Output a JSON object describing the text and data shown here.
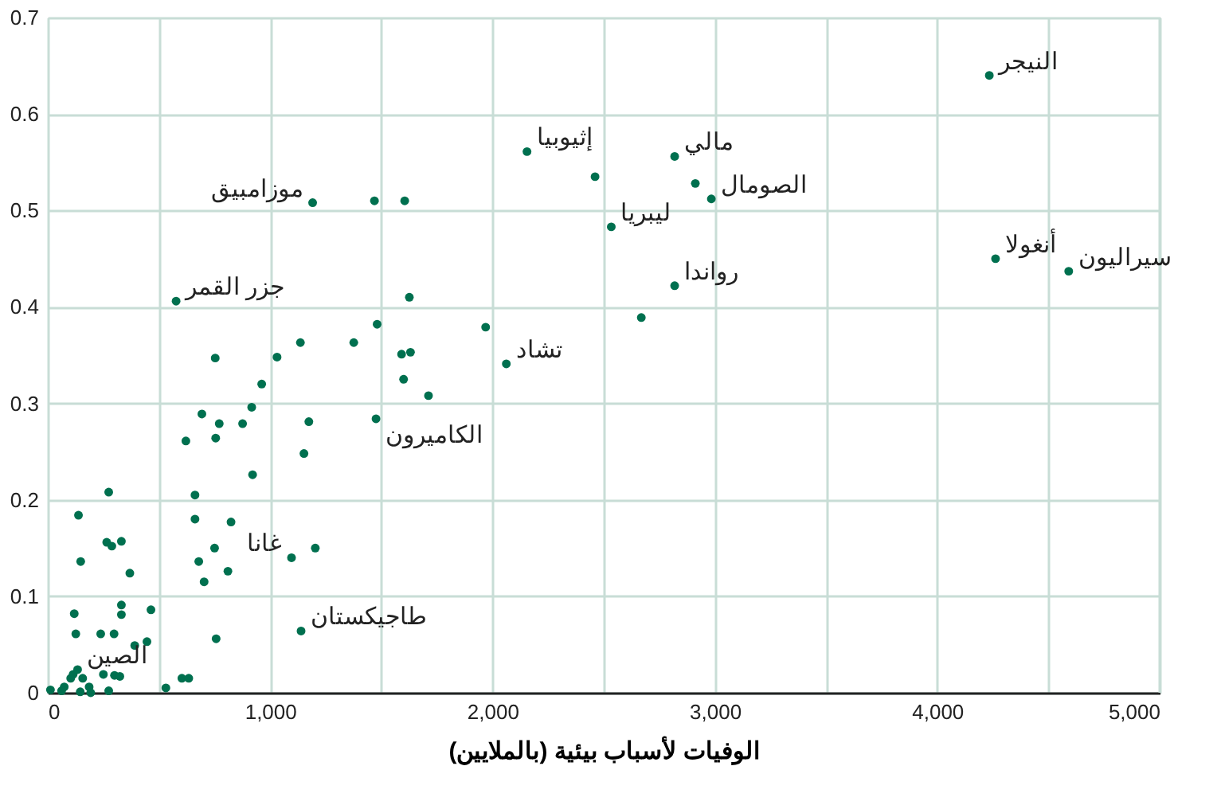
{
  "chart_data": {
    "type": "scatter",
    "xlabel": "الوفيات لأسباب بيئية (بالملايين)",
    "xlim": [
      0,
      5000
    ],
    "ylim": [
      0,
      0.7
    ],
    "xticks": [
      0,
      {
        "value": 500,
        "label": null
      },
      {
        "value": 1000,
        "label": "1,000"
      },
      {
        "value": 1500,
        "label": null
      },
      {
        "value": 2000,
        "label": "2,000"
      },
      {
        "value": 2500,
        "label": null
      },
      {
        "value": 3000,
        "label": "3,000"
      },
      {
        "value": 3500,
        "label": null
      },
      {
        "value": 4000,
        "label": "4,000"
      },
      {
        "value": 4500,
        "label": null
      },
      {
        "value": 5000,
        "label": "5,000"
      }
    ],
    "yticks": [
      0,
      0.1,
      0.2,
      0.3,
      0.4,
      0.5,
      0.6,
      0.7
    ],
    "grid": true,
    "marker": "circle",
    "series": [
      {
        "color": "#00704f",
        "x": [
          4234,
          4262,
          4591,
          2819,
          2912,
          2984,
          2461,
          2155,
          2534,
          2819,
          2669,
          2062,
          1969,
          1191,
          1469,
          1605,
          577,
          1626,
          1481,
          1376,
          1136,
          1031,
          753,
          1591,
          1631,
          1600,
          1712,
          962,
          917,
          693,
          771,
          876,
          1174,
          1476,
          621,
          755,
          1152,
          921,
          274,
          662,
          662,
          824,
          138,
          265,
          288,
          331,
          750,
          148,
          369,
          679,
          810,
          703,
          1096,
          1203,
          331,
          331,
          464,
          119,
          126,
          238,
          298,
          391,
          446,
          757,
          1139,
          114,
          134,
          103,
          157,
          186,
          74,
          12,
          62,
          146,
          193,
          250,
          300,
          324,
          274,
          531,
          603,
          634
        ],
        "values": [
          0.64,
          0.45,
          0.437,
          0.556,
          0.528,
          0.512,
          0.535,
          0.561,
          0.483,
          0.422,
          0.389,
          0.341,
          0.379,
          0.508,
          0.51,
          0.51,
          0.406,
          0.41,
          0.382,
          0.363,
          0.363,
          0.348,
          0.347,
          0.351,
          0.353,
          0.325,
          0.308,
          0.32,
          0.296,
          0.289,
          0.279,
          0.279,
          0.281,
          0.284,
          0.261,
          0.264,
          0.248,
          0.226,
          0.208,
          0.205,
          0.18,
          0.177,
          0.184,
          0.156,
          0.152,
          0.157,
          0.15,
          0.136,
          0.124,
          0.136,
          0.126,
          0.115,
          0.14,
          0.15,
          0.091,
          0.081,
          0.086,
          0.082,
          0.061,
          0.061,
          0.061,
          0.049,
          0.053,
          0.056,
          0.064,
          0.019,
          0.024,
          0.015,
          0.015,
          0.006,
          0.006,
          0.003,
          0.002,
          0.001,
          0.0,
          0.019,
          0.018,
          0.017,
          0.002,
          0.005,
          0.015,
          0.015
        ]
      }
    ],
    "annotations": [
      {
        "text": "النيجر",
        "x": 4234,
        "y": 0.64
      },
      {
        "text": "أنغولا",
        "x": 4262,
        "y": 0.45
      },
      {
        "text": "سيراليون",
        "x": 4591,
        "y": 0.437
      },
      {
        "text": "مالي",
        "x": 2819,
        "y": 0.556
      },
      {
        "text": "الصومال",
        "x": 2984,
        "y": 0.512
      },
      {
        "text": "إثيوبيا",
        "x": 2155,
        "y": 0.561
      },
      {
        "text": "ليبريا",
        "x": 2534,
        "y": 0.483
      },
      {
        "text": "رواندا",
        "x": 2819,
        "y": 0.422
      },
      {
        "text": "تشاد",
        "x": 2062,
        "y": 0.341
      },
      {
        "text": "موزامبيق",
        "x": 1191,
        "y": 0.508
      },
      {
        "text": "جزر القمر",
        "x": 577,
        "y": 0.406
      },
      {
        "text": "الكاميرون",
        "x": 1476,
        "y": 0.284
      },
      {
        "text": "غانا",
        "x": 1096,
        "y": 0.14
      },
      {
        "text": "طاجيكستان",
        "x": 1139,
        "y": 0.064
      },
      {
        "text": "الصين",
        "x": 134,
        "y": 0.024
      }
    ]
  }
}
